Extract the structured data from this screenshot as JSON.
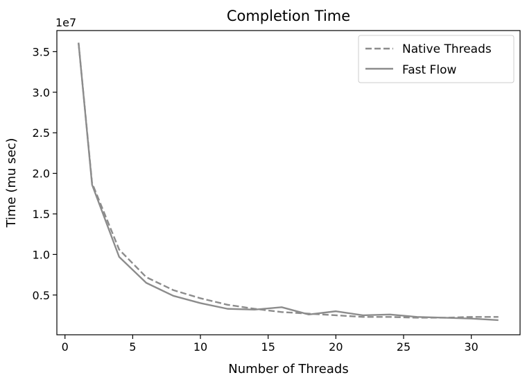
{
  "chart_data": {
    "type": "line",
    "title": "Completion Time",
    "xlabel": "Number of Threads",
    "ylabel": "Time (mu sec)",
    "y_offset_label": "1e7",
    "xlim": [
      -0.6,
      33.6
    ],
    "ylim": [
      100000,
      37600000
    ],
    "x_ticks": [
      0,
      5,
      10,
      15,
      20,
      25,
      30
    ],
    "x_tick_labels": [
      "0",
      "5",
      "10",
      "15",
      "20",
      "25",
      "30"
    ],
    "y_ticks": [
      5000000,
      10000000,
      15000000,
      20000000,
      25000000,
      30000000,
      35000000
    ],
    "y_tick_labels": [
      "0.5",
      "1.0",
      "1.5",
      "2.0",
      "2.5",
      "3.0",
      "3.5"
    ],
    "grid": false,
    "legend_position": "top-right",
    "colors": {
      "native": "#8c8c8c",
      "fastflow": "#8c8c8c"
    },
    "series": [
      {
        "name": "Native Threads",
        "style": "dashed",
        "x": [
          1,
          2,
          4,
          6,
          8,
          10,
          12,
          14,
          16,
          18,
          20,
          22,
          24,
          26,
          28,
          30,
          32
        ],
        "y": [
          36100000,
          18800000,
          10600000,
          7200000,
          5600000,
          4600000,
          3800000,
          3300000,
          2900000,
          2700000,
          2500000,
          2300000,
          2300000,
          2200000,
          2200000,
          2300000,
          2300000
        ]
      },
      {
        "name": "Fast Flow",
        "style": "solid",
        "x": [
          1,
          2,
          4,
          6,
          8,
          10,
          12,
          14,
          16,
          18,
          20,
          22,
          24,
          26,
          28,
          30,
          32
        ],
        "y": [
          36100000,
          18600000,
          9700000,
          6500000,
          4900000,
          4000000,
          3300000,
          3200000,
          3500000,
          2600000,
          3000000,
          2500000,
          2600000,
          2300000,
          2200000,
          2100000,
          1900000
        ]
      }
    ]
  }
}
